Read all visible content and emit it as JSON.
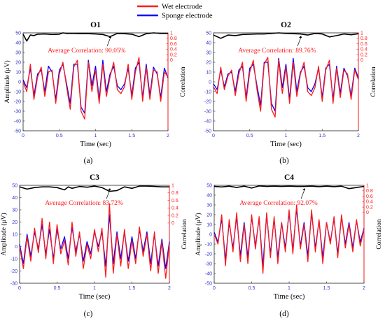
{
  "legend": {
    "entries": [
      {
        "label": "Wet electrode",
        "color": "#ff1a1a"
      },
      {
        "label": "Sponge electrode",
        "color": "#0000ff"
      }
    ]
  },
  "colors": {
    "wet": "#ff1a1a",
    "sponge": "#0000ff",
    "correlation": "#000000",
    "left_axis": "#3333cc",
    "right_axis": "#ff1a1a",
    "annotation": "#ff1a1a"
  },
  "chart_data": [
    {
      "type": "line",
      "panel": "(a)",
      "title": "O1",
      "annotation": "Average Correlation: 90.05%",
      "xlabel": "Time (sec)",
      "ylabel": "Amplitude (μV)",
      "y2label": "Correlation",
      "xlim": [
        0,
        2
      ],
      "ylim": [
        -50,
        50
      ],
      "y2lim": [
        -2.6,
        1
      ],
      "xticks": [
        "0",
        "0.5",
        "1",
        "1.5",
        "2"
      ],
      "yticks": [
        "50",
        "40",
        "30",
        "20",
        "10",
        "0",
        "-10",
        "-20",
        "-30",
        "-40",
        "-50"
      ],
      "y2ticks": [
        "1",
        "0.8",
        "0.6",
        "0.4",
        "0.2",
        "0"
      ],
      "series": [
        {
          "name": "Wet electrode",
          "x": [
            0.0,
            0.05,
            0.1,
            0.15,
            0.2,
            0.25,
            0.3,
            0.35,
            0.4,
            0.45,
            0.5,
            0.55,
            0.6,
            0.65,
            0.7,
            0.75,
            0.8,
            0.85,
            0.9,
            0.95,
            1.0,
            1.05,
            1.1,
            1.15,
            1.2,
            1.25,
            1.3,
            1.35,
            1.4,
            1.45,
            1.5,
            1.55,
            1.6,
            1.65,
            1.7,
            1.75,
            1.8,
            1.85,
            1.9,
            1.95,
            2.0
          ],
          "y": [
            0,
            -10,
            18,
            -18,
            5,
            15,
            -15,
            10,
            12,
            -22,
            8,
            20,
            -5,
            -28,
            15,
            22,
            -30,
            -38,
            20,
            -10,
            12,
            -22,
            18,
            -15,
            5,
            20,
            -8,
            -12,
            -5,
            18,
            -18,
            10,
            25,
            -20,
            15,
            -18,
            12,
            10,
            -20,
            10,
            5
          ]
        },
        {
          "name": "Sponge electrode",
          "x": [
            0.0,
            0.05,
            0.1,
            0.15,
            0.2,
            0.25,
            0.3,
            0.35,
            0.4,
            0.45,
            0.5,
            0.55,
            0.6,
            0.65,
            0.7,
            0.75,
            0.8,
            0.85,
            0.9,
            0.95,
            1.0,
            1.05,
            1.1,
            1.15,
            1.2,
            1.25,
            1.3,
            1.35,
            1.4,
            1.45,
            1.5,
            1.55,
            1.6,
            1.65,
            1.7,
            1.75,
            1.8,
            1.85,
            1.9,
            1.95,
            2.0
          ],
          "y": [
            2,
            -6,
            14,
            -14,
            8,
            12,
            -10,
            16,
            10,
            -18,
            12,
            18,
            -2,
            -22,
            18,
            18,
            -26,
            -32,
            22,
            -4,
            16,
            -18,
            22,
            -10,
            8,
            16,
            -4,
            -8,
            -2,
            14,
            -14,
            14,
            20,
            -16,
            18,
            -14,
            15,
            8,
            -16,
            14,
            4
          ]
        },
        {
          "name": "Correlation",
          "axis": "right",
          "x": [
            0.0,
            0.05,
            0.1,
            0.15,
            0.2,
            0.3,
            0.4,
            0.5,
            0.55,
            0.6,
            0.7,
            0.8,
            0.9,
            1.0,
            1.1,
            1.2,
            1.3,
            1.4,
            1.5,
            1.6,
            1.7,
            1.8,
            1.9,
            2.0
          ],
          "y": [
            0.95,
            0.7,
            0.92,
            0.9,
            0.95,
            0.96,
            0.94,
            0.95,
            1.0,
            0.98,
            0.98,
            0.97,
            0.97,
            0.96,
            0.94,
            0.86,
            0.98,
            0.97,
            0.95,
            0.86,
            0.97,
            1.0,
            0.98,
            0.98
          ]
        }
      ]
    },
    {
      "type": "line",
      "panel": "(b)",
      "title": "O2",
      "annotation": "Average Correlation: 89.76%",
      "xlabel": "Time (sec)",
      "ylabel": "",
      "y2label": "Correlation",
      "xlim": [
        0,
        2
      ],
      "ylim": [
        -50,
        50
      ],
      "y2lim": [
        -2.6,
        1
      ],
      "xticks": [
        "0",
        "0.5",
        "1",
        "1.5",
        "2"
      ],
      "yticks": [
        "50",
        "40",
        "30",
        "20",
        "10",
        "0",
        "-10",
        "-20",
        "-30",
        "-40",
        "-50"
      ],
      "y2ticks": [
        "1",
        "0.8",
        "0.6",
        "0.4",
        "0.2",
        "0"
      ],
      "series": [
        {
          "name": "Wet electrode",
          "x": [
            0.0,
            0.05,
            0.1,
            0.15,
            0.2,
            0.25,
            0.3,
            0.35,
            0.4,
            0.45,
            0.5,
            0.55,
            0.6,
            0.65,
            0.7,
            0.75,
            0.8,
            0.85,
            0.9,
            0.95,
            1.0,
            1.05,
            1.1,
            1.15,
            1.2,
            1.25,
            1.3,
            1.35,
            1.4,
            1.45,
            1.5,
            1.55,
            1.6,
            1.65,
            1.7,
            1.75,
            1.8,
            1.85,
            1.9,
            1.95,
            2.0
          ],
          "y": [
            -5,
            -12,
            15,
            -8,
            6,
            12,
            -14,
            8,
            20,
            -20,
            10,
            22,
            -8,
            -30,
            18,
            25,
            -28,
            -36,
            22,
            -12,
            15,
            -22,
            20,
            -15,
            8,
            20,
            -10,
            -14,
            -6,
            16,
            -20,
            12,
            22,
            -22,
            14,
            -16,
            12,
            8,
            -18,
            12,
            2
          ]
        },
        {
          "name": "Sponge electrode",
          "x": [
            0.0,
            0.05,
            0.1,
            0.15,
            0.2,
            0.25,
            0.3,
            0.35,
            0.4,
            0.45,
            0.5,
            0.55,
            0.6,
            0.65,
            0.7,
            0.75,
            0.8,
            0.85,
            0.9,
            0.95,
            1.0,
            1.05,
            1.1,
            1.15,
            1.2,
            1.25,
            1.3,
            1.35,
            1.4,
            1.45,
            1.5,
            1.55,
            1.6,
            1.65,
            1.7,
            1.75,
            1.8,
            1.85,
            1.9,
            1.95,
            2.0
          ],
          "y": [
            -2,
            -8,
            12,
            -5,
            8,
            10,
            -10,
            12,
            16,
            -16,
            14,
            18,
            -4,
            -24,
            20,
            20,
            -22,
            -30,
            24,
            -6,
            18,
            -18,
            24,
            -10,
            10,
            16,
            -6,
            -10,
            -2,
            14,
            -16,
            14,
            18,
            -18,
            16,
            -12,
            14,
            6,
            -14,
            14,
            4
          ]
        },
        {
          "name": "Correlation",
          "axis": "right",
          "x": [
            0.0,
            0.1,
            0.2,
            0.3,
            0.4,
            0.5,
            0.6,
            0.7,
            0.8,
            0.9,
            1.0,
            1.1,
            1.2,
            1.3,
            1.4,
            1.5,
            1.6,
            1.7,
            1.8,
            1.9,
            2.0
          ],
          "y": [
            0.92,
            0.8,
            0.92,
            0.9,
            0.94,
            0.95,
            0.96,
            0.96,
            0.98,
            1.0,
            0.98,
            0.97,
            0.96,
            0.92,
            0.98,
            0.96,
            0.85,
            0.9,
            0.96,
            0.93,
            0.97
          ]
        }
      ]
    },
    {
      "type": "line",
      "panel": "(c)",
      "title": "C3",
      "annotation": "Average Correlation: 83.72%",
      "xlabel": "Time (sec)",
      "ylabel": "Amplitude (μV)",
      "y2label": "Correlation",
      "xlim": [
        0,
        2
      ],
      "ylim": [
        -30,
        50
      ],
      "y2lim": [
        -1.6,
        1
      ],
      "xticks": [
        "0",
        "0.5",
        "1",
        "1.5",
        "2"
      ],
      "yticks": [
        "50",
        "40",
        "30",
        "20",
        "10",
        "0",
        "-10",
        "-20",
        "-30"
      ],
      "y2ticks": [
        "1",
        "0.8",
        "0.6",
        "0.4",
        "0.2",
        "0"
      ],
      "series": [
        {
          "name": "Wet electrode",
          "x": [
            0.0,
            0.05,
            0.1,
            0.15,
            0.2,
            0.25,
            0.3,
            0.35,
            0.4,
            0.45,
            0.5,
            0.55,
            0.6,
            0.65,
            0.7,
            0.75,
            0.8,
            0.85,
            0.9,
            0.95,
            1.0,
            1.05,
            1.1,
            1.15,
            1.2,
            1.25,
            1.3,
            1.35,
            1.4,
            1.45,
            1.5,
            1.55,
            1.6,
            1.65,
            1.7,
            1.75,
            1.8,
            1.85,
            1.9,
            1.95,
            2.0
          ],
          "y": [
            0,
            -18,
            8,
            -12,
            15,
            -5,
            23,
            -10,
            20,
            -14,
            18,
            -6,
            5,
            -15,
            20,
            -8,
            12,
            -18,
            2,
            -10,
            14,
            -4,
            15,
            -25,
            35,
            -22,
            10,
            -16,
            14,
            -18,
            5,
            -14,
            16,
            -8,
            10,
            -20,
            12,
            -22,
            4,
            -26,
            2
          ]
        },
        {
          "name": "Sponge electrode",
          "x": [
            0.0,
            0.05,
            0.1,
            0.15,
            0.2,
            0.25,
            0.3,
            0.35,
            0.4,
            0.45,
            0.5,
            0.55,
            0.6,
            0.65,
            0.7,
            0.75,
            0.8,
            0.85,
            0.9,
            0.95,
            1.0,
            1.05,
            1.1,
            1.15,
            1.2,
            1.25,
            1.3,
            1.35,
            1.4,
            1.45,
            1.5,
            1.55,
            1.6,
            1.65,
            1.7,
            1.75,
            1.8,
            1.85,
            1.9,
            1.95,
            2.0
          ],
          "y": [
            2,
            -14,
            10,
            -8,
            12,
            -2,
            18,
            -6,
            14,
            -10,
            14,
            -2,
            8,
            -10,
            16,
            -4,
            10,
            -12,
            4,
            -6,
            12,
            0,
            12,
            -16,
            26,
            -14,
            12,
            -10,
            12,
            -12,
            8,
            -10,
            14,
            -4,
            12,
            -14,
            10,
            -16,
            6,
            -18,
            4
          ]
        },
        {
          "name": "Correlation",
          "axis": "right",
          "x": [
            0.0,
            0.1,
            0.2,
            0.3,
            0.4,
            0.5,
            0.6,
            0.65,
            0.7,
            0.8,
            0.9,
            1.0,
            1.1,
            1.2,
            1.3,
            1.4,
            1.5,
            1.6,
            1.7,
            1.8,
            1.9,
            2.0
          ],
          "y": [
            0.96,
            0.9,
            0.94,
            0.96,
            0.96,
            0.94,
            0.88,
            0.96,
            0.92,
            0.97,
            0.95,
            0.98,
            0.94,
            0.84,
            0.86,
            0.96,
            0.92,
            0.98,
            0.98,
            0.97,
            0.96,
            0.96
          ]
        }
      ]
    },
    {
      "type": "line",
      "panel": "(d)",
      "title": "C4",
      "annotation": "Average Correlation: 92.07%",
      "xlabel": "Time (sec)",
      "ylabel": "Amplitude (μV)",
      "y2label": "Correlation",
      "xlim": [
        0,
        2
      ],
      "ylim": [
        -50,
        50
      ],
      "y2lim": [
        -2.6,
        1
      ],
      "xticks": [
        "0",
        "0.5",
        "1",
        "1.5",
        "2"
      ],
      "yticks": [
        "50",
        "40",
        "30",
        "20",
        "10",
        "0",
        "-10",
        "-20",
        "-30",
        "-40",
        "-50"
      ],
      "y2ticks": [
        "1",
        "0.8",
        "0.6",
        "0.4",
        "0.2",
        "0"
      ],
      "series": [
        {
          "name": "Wet electrode",
          "x": [
            0.0,
            0.05,
            0.1,
            0.15,
            0.2,
            0.25,
            0.3,
            0.35,
            0.4,
            0.45,
            0.5,
            0.55,
            0.6,
            0.65,
            0.7,
            0.75,
            0.8,
            0.85,
            0.9,
            0.95,
            1.0,
            1.05,
            1.1,
            1.15,
            1.2,
            1.25,
            1.3,
            1.35,
            1.4,
            1.45,
            1.5,
            1.55,
            1.6,
            1.65,
            1.7,
            1.75,
            1.8,
            1.85,
            1.9,
            1.95,
            2.0
          ],
          "y": [
            0,
            -10,
            20,
            -32,
            15,
            -18,
            22,
            -28,
            10,
            -30,
            20,
            -15,
            18,
            -40,
            22,
            -24,
            18,
            -30,
            12,
            -18,
            25,
            -20,
            30,
            -15,
            10,
            -28,
            25,
            -18,
            15,
            -30,
            12,
            -10,
            18,
            -24,
            20,
            -14,
            10,
            -18,
            15,
            -12,
            5
          ]
        },
        {
          "name": "Sponge electrode",
          "x": [
            0.0,
            0.05,
            0.1,
            0.15,
            0.2,
            0.25,
            0.3,
            0.35,
            0.4,
            0.45,
            0.5,
            0.55,
            0.6,
            0.65,
            0.7,
            0.75,
            0.8,
            0.85,
            0.9,
            0.95,
            1.0,
            1.05,
            1.1,
            1.15,
            1.2,
            1.25,
            1.3,
            1.35,
            1.4,
            1.45,
            1.5,
            1.55,
            1.6,
            1.65,
            1.7,
            1.75,
            1.8,
            1.85,
            1.9,
            1.95,
            2.0
          ],
          "y": [
            2,
            -8,
            16,
            -26,
            12,
            -14,
            18,
            -22,
            12,
            -24,
            18,
            -12,
            16,
            -32,
            20,
            -20,
            16,
            -24,
            12,
            -14,
            22,
            -16,
            26,
            -12,
            12,
            -22,
            22,
            -14,
            14,
            -24,
            12,
            -8,
            16,
            -20,
            18,
            -10,
            12,
            -14,
            14,
            -8,
            6
          ]
        },
        {
          "name": "Correlation",
          "axis": "right",
          "x": [
            0.0,
            0.1,
            0.2,
            0.3,
            0.4,
            0.5,
            0.6,
            0.7,
            0.8,
            0.9,
            1.0,
            1.1,
            1.2,
            1.3,
            1.4,
            1.5,
            1.6,
            1.7,
            1.8,
            1.9,
            2.0
          ],
          "y": [
            0.96,
            0.94,
            0.97,
            0.92,
            0.97,
            0.9,
            0.98,
            0.96,
            0.97,
            0.96,
            0.97,
            0.96,
            0.96,
            0.97,
            0.95,
            0.97,
            0.95,
            0.97,
            0.88,
            0.92,
            0.96
          ]
        }
      ]
    }
  ]
}
